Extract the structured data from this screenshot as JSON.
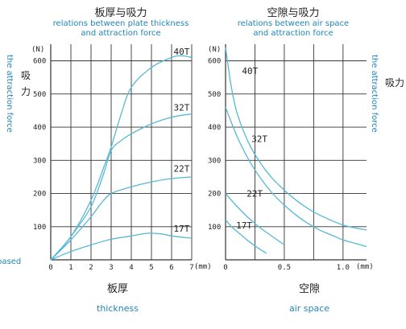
{
  "colors": {
    "accent": "#1f86b8",
    "curve": "#56b8d8",
    "grid": "#333333",
    "text": "#222222"
  },
  "left_panel": {
    "title_cn": "板厚与吸力",
    "title_en_1": "relations between plate thickness",
    "title_en_2": "and attraction force",
    "unit": "(N)",
    "side_cn": "吸力",
    "side_en": "the attraction force",
    "xunit": "(mm)",
    "xlabel_cn": "板厚",
    "xlabel_en": "thickness",
    "cut_text": "based"
  },
  "right_panel": {
    "title_cn": "空隙与吸力",
    "title_en_1": "relations between air space",
    "title_en_2": "and attraction force",
    "unit": "(N)",
    "side_cn": "吸力",
    "side_en": "the attraction force",
    "xunit": "(mm)",
    "xlabel_cn": "空隙",
    "xlabel_en": "air space"
  },
  "chart_data": [
    {
      "type": "line",
      "title": "板厚与吸力 relations between plate thickness and attraction force",
      "xlabel": "板厚 thickness",
      "ylabel": "吸力 the attraction force",
      "xunit": "mm",
      "yunit": "N",
      "xlim": [
        0,
        7
      ],
      "ylim": [
        0,
        650
      ],
      "xticks": [
        "0",
        "1",
        "2",
        "3",
        "4",
        "5",
        "6",
        "7"
      ],
      "yticks": [
        "100",
        "200",
        "300",
        "400",
        "500",
        "600"
      ],
      "grid": true,
      "series": [
        {
          "name": "40T",
          "x": [
            0,
            1,
            2,
            2.7,
            3,
            3.5,
            4,
            5,
            6,
            6.5,
            7
          ],
          "y": [
            0,
            70,
            180,
            290,
            340,
            440,
            520,
            580,
            610,
            615,
            610
          ]
        },
        {
          "name": "32T",
          "x": [
            0,
            1,
            2,
            2.6,
            3,
            3.5,
            4,
            5,
            6,
            7
          ],
          "y": [
            0,
            70,
            160,
            255,
            330,
            360,
            380,
            410,
            430,
            440
          ]
        },
        {
          "name": "22T",
          "x": [
            0,
            1,
            2,
            2.5,
            3,
            4,
            5,
            6,
            7
          ],
          "y": [
            0,
            60,
            130,
            170,
            200,
            220,
            235,
            245,
            250
          ]
        },
        {
          "name": "17T",
          "x": [
            0,
            1,
            2,
            3,
            4,
            4.8,
            5.5,
            6,
            7
          ],
          "y": [
            0,
            25,
            45,
            62,
            72,
            80,
            78,
            72,
            65
          ]
        }
      ]
    },
    {
      "type": "line",
      "title": "空隙与吸力 relations between air space and attraction force",
      "xlabel": "空隙 air space",
      "ylabel": "吸力 the attraction force",
      "xunit": "mm",
      "yunit": "N",
      "xlim": [
        0,
        1.2
      ],
      "ylim": [
        0,
        650
      ],
      "xticks": [
        "0",
        "0.5",
        "1.0"
      ],
      "yticks": [
        "100",
        "200",
        "300",
        "400",
        "500",
        "600"
      ],
      "grid": true,
      "series": [
        {
          "name": "40T",
          "x": [
            0,
            0.02,
            0.05,
            0.1,
            0.2,
            0.3,
            0.4,
            0.5,
            0.6,
            0.7,
            0.8,
            1.0,
            1.2
          ],
          "y": [
            640,
            590,
            520,
            440,
            350,
            290,
            245,
            210,
            180,
            155,
            135,
            105,
            90
          ]
        },
        {
          "name": "32T",
          "x": [
            0,
            0.1,
            0.2,
            0.3,
            0.4,
            0.5,
            0.6,
            0.7,
            0.8,
            0.9,
            1.0,
            1.1,
            1.2
          ],
          "y": [
            460,
            370,
            300,
            245,
            200,
            165,
            135,
            110,
            90,
            75,
            60,
            50,
            40
          ]
        },
        {
          "name": "22T",
          "x": [
            0,
            0.1,
            0.2,
            0.3,
            0.4,
            0.5
          ],
          "y": [
            200,
            160,
            125,
            95,
            70,
            45
          ]
        },
        {
          "name": "17T",
          "x": [
            0,
            0.05,
            0.1,
            0.15,
            0.2,
            0.3,
            0.35
          ],
          "y": [
            120,
            100,
            85,
            70,
            55,
            30,
            20
          ]
        }
      ]
    }
  ]
}
